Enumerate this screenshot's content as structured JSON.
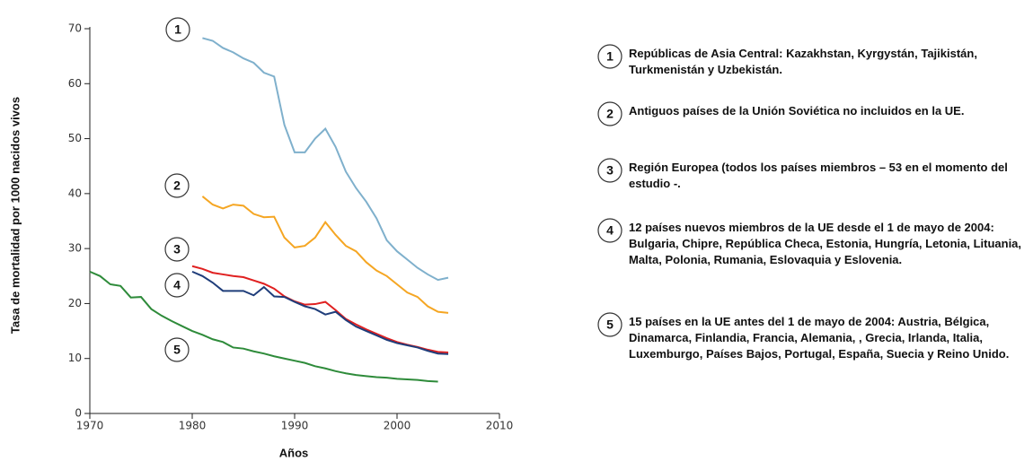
{
  "chart_data": {
    "type": "line",
    "x_label": "Años",
    "y_label": "Tasa de mortalidad por 1000 nacidos vivos",
    "x": [
      1970,
      1971,
      1972,
      1973,
      1974,
      1975,
      1976,
      1977,
      1978,
      1979,
      1980,
      1981,
      1982,
      1983,
      1984,
      1985,
      1986,
      1987,
      1988,
      1989,
      1990,
      1991,
      1992,
      1993,
      1994,
      1995,
      1996,
      1997,
      1998,
      1999,
      2000,
      2001,
      2002,
      2003,
      2004,
      2005
    ],
    "xlim": [
      1970,
      2010
    ],
    "xticks": [
      1970,
      1980,
      1990,
      2000,
      2010
    ],
    "ylim": [
      0,
      70
    ],
    "yticks": [
      0,
      10,
      20,
      30,
      40,
      50,
      60,
      70
    ],
    "series": [
      {
        "name": "1",
        "description": "Repúblicas de Asia Central: Kazakhstan, Kyrgystán, Tajikistán, Turkmenistán y Uzbekistán.",
        "color": "#7fb0cc",
        "values": [
          null,
          null,
          null,
          null,
          null,
          null,
          null,
          null,
          null,
          null,
          null,
          68.3,
          67.8,
          66.5,
          65.7,
          64.6,
          63.8,
          62,
          61.3,
          52.5,
          47.5,
          47.5,
          50,
          51.8,
          48.5,
          44,
          41,
          38.5,
          35.5,
          31.5,
          29.5,
          28,
          26.5,
          25.3,
          24.3,
          24.7
        ]
      },
      {
        "name": "2",
        "description": "Antiguos países de la Unión Soviética no incluidos en la UE.",
        "color": "#f5a623",
        "values": [
          null,
          null,
          null,
          null,
          null,
          null,
          null,
          null,
          null,
          null,
          null,
          39.5,
          38,
          37.3,
          38,
          37.8,
          36.3,
          35.7,
          35.8,
          32,
          30.2,
          30.5,
          32,
          34.8,
          32.5,
          30.5,
          29.5,
          27.5,
          26,
          25,
          23.5,
          22,
          21.2,
          19.5,
          18.5,
          18.3
        ]
      },
      {
        "name": "3",
        "description": "Región Europea (todos los países miembros – 53 en el momento del estudio -.",
        "color": "#e02020",
        "values": [
          null,
          null,
          null,
          null,
          null,
          null,
          null,
          null,
          null,
          null,
          26.8,
          26.3,
          25.6,
          25.3,
          25,
          24.8,
          24.2,
          23.6,
          22.7,
          21.3,
          20.4,
          19.8,
          19.9,
          20.3,
          18.8,
          17.2,
          16.2,
          15.3,
          14.5,
          13.7,
          13,
          12.5,
          12.1,
          11.6,
          11.2,
          11.1
        ]
      },
      {
        "name": "4",
        "description": "12 países nuevos miembros de la UE desde el 1 de mayo de 2004: Bulgaria, Chipre, República Checa, Estonia, Hungría, Letonia, Lituania, Malta, Polonia, Rumania, Eslovaquia y Eslovenia.",
        "color": "#1f3d7a",
        "values": [
          null,
          null,
          null,
          null,
          null,
          null,
          null,
          null,
          null,
          null,
          25.8,
          25,
          23.8,
          22.3,
          22.3,
          22.3,
          21.5,
          23,
          21.3,
          21.2,
          20.3,
          19.5,
          19,
          18,
          18.5,
          17,
          15.8,
          15,
          14.2,
          13.4,
          12.8,
          12.4,
          12,
          11.4,
          10.9,
          10.8
        ]
      },
      {
        "name": "5",
        "description": "15 países en la UE antes del 1 de mayo de 2004: Austria, Bélgica, Dinamarca, Finlandia, Francia, Alemania, , Grecia, Irlanda, Italia, Luxemburgo, Países Bajos, Portugal, España, Suecia y Reino Unido.",
        "color": "#2e8b3a",
        "values": [
          25.8,
          25,
          23.5,
          23.2,
          21.1,
          21.2,
          19,
          17.8,
          16.8,
          15.9,
          15,
          14.3,
          13.5,
          13,
          12,
          11.8,
          11.3,
          10.9,
          10.4,
          10,
          9.6,
          9.2,
          8.6,
          8.2,
          7.7,
          7.3,
          7,
          6.8,
          6.6,
          6.5,
          6.3,
          6.2,
          6.1,
          5.9,
          5.8,
          null
        ]
      }
    ]
  }
}
